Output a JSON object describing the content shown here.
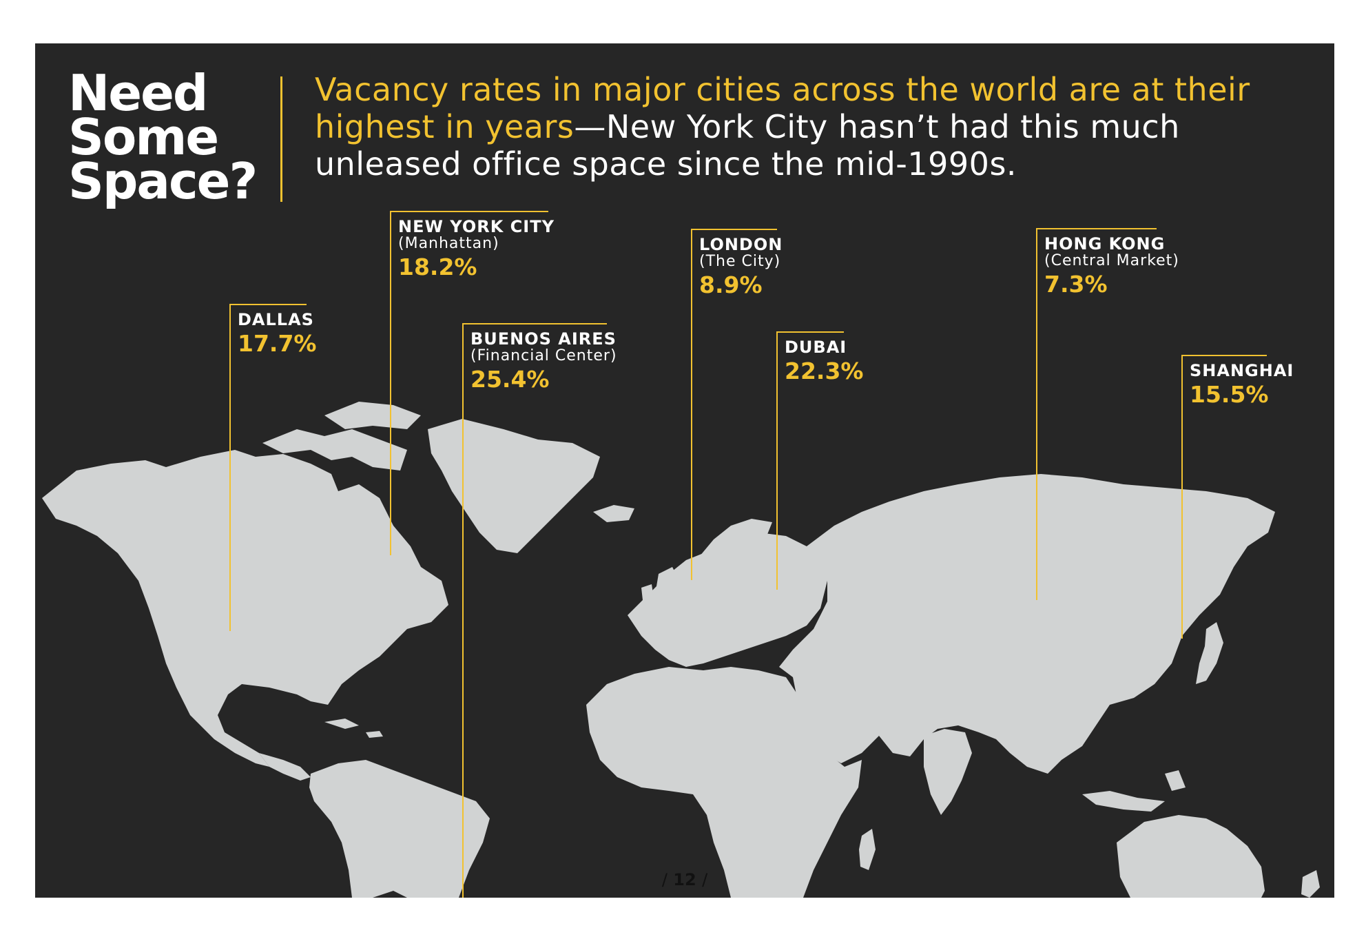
{
  "title_lines": [
    "Need",
    "Some",
    "Space?"
  ],
  "headline": {
    "highlight": "Vacancy rates in major cities across the world are at their highest in years",
    "rest": "—New York City hasn’t had this much unleased office space since the mid-1990s."
  },
  "markers": [
    {
      "city": "DALLAS",
      "sub": "",
      "rate": "17.7%"
    },
    {
      "city": "NEW YORK CITY",
      "sub": "(Manhattan)",
      "rate": "18.2%"
    },
    {
      "city": "BUENOS AIRES",
      "sub": "(Financial Center)",
      "rate": "25.4%"
    },
    {
      "city": "LONDON",
      "sub": "(The City)",
      "rate": "8.9%"
    },
    {
      "city": "DUBAI",
      "sub": "",
      "rate": "22.3%"
    },
    {
      "city": "HONG KONG",
      "sub": "(Central Market)",
      "rate": "7.3%"
    },
    {
      "city": "SHANGHAI",
      "sub": "",
      "rate": "15.5%"
    }
  ],
  "page_number": "12",
  "page_slash": "/",
  "colors": {
    "panel": "#262626",
    "accent": "#f2c230",
    "land": "#d1d3d3",
    "text": "#ffffff"
  }
}
